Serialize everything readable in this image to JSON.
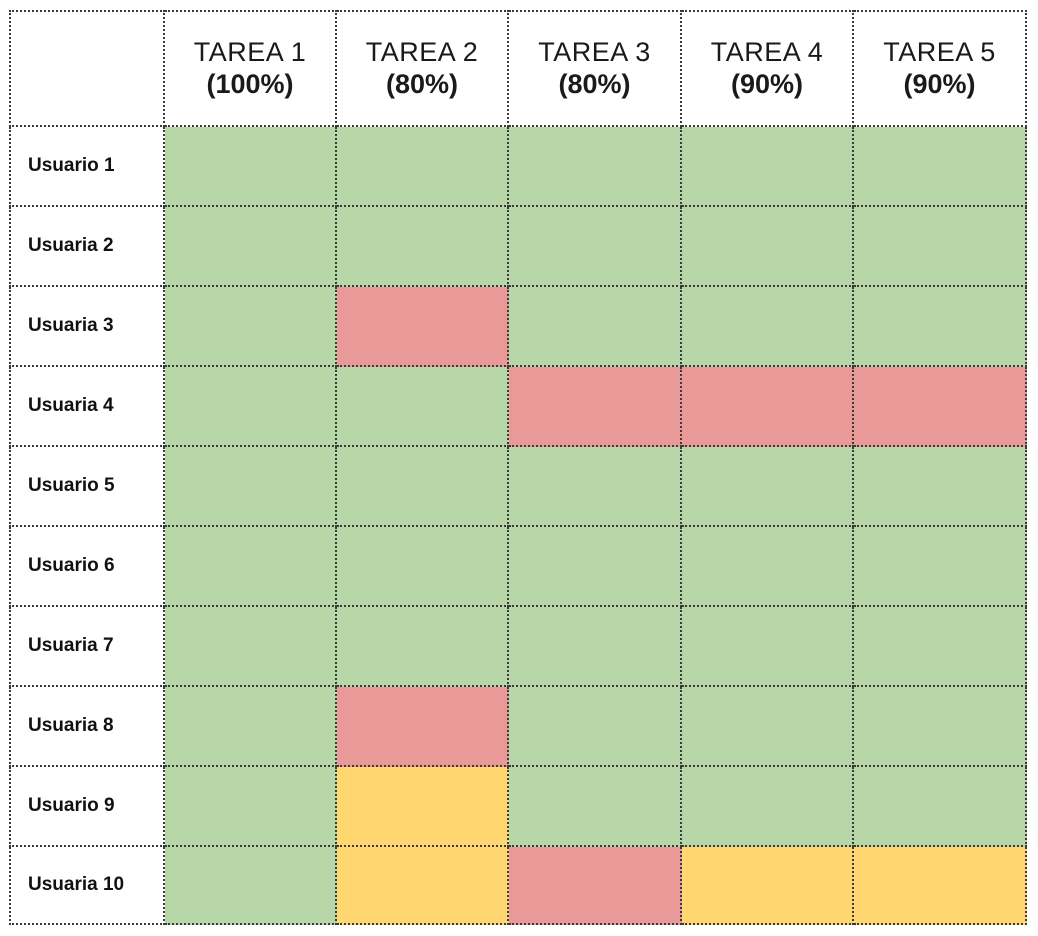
{
  "colors": {
    "success": "#b7d7a8",
    "failure": "#ea9999",
    "partial": "#ffd670",
    "header_bg": "#ffffff",
    "label_bg": "#ffffff"
  },
  "chart_data": {
    "type": "heatmap",
    "title": "",
    "columns": [
      {
        "name": "TAREA 1",
        "weight": "(100%)"
      },
      {
        "name": "TAREA 2",
        "weight": "(80%)"
      },
      {
        "name": "TAREA 3",
        "weight": "(80%)"
      },
      {
        "name": "TAREA 4",
        "weight": "(90%)"
      },
      {
        "name": "TAREA 5",
        "weight": "(90%)"
      }
    ],
    "rows": [
      "Usuario 1",
      "Usuaria 2",
      "Usuaria 3",
      "Usuaria 4",
      "Usuario 5",
      "Usuario 6",
      "Usuaria 7",
      "Usuaria 8",
      "Usuario 9",
      "Usuaria 10"
    ],
    "legend": {
      "success": "green",
      "failure": "red",
      "partial": "yellow"
    },
    "values": [
      [
        "success",
        "success",
        "success",
        "success",
        "success"
      ],
      [
        "success",
        "success",
        "success",
        "success",
        "success"
      ],
      [
        "success",
        "failure",
        "success",
        "success",
        "success"
      ],
      [
        "success",
        "success",
        "failure",
        "failure",
        "failure"
      ],
      [
        "success",
        "success",
        "success",
        "success",
        "success"
      ],
      [
        "success",
        "success",
        "success",
        "success",
        "success"
      ],
      [
        "success",
        "success",
        "success",
        "success",
        "success"
      ],
      [
        "success",
        "failure",
        "success",
        "success",
        "success"
      ],
      [
        "success",
        "partial",
        "success",
        "success",
        "success"
      ],
      [
        "success",
        "partial",
        "failure",
        "partial",
        "partial"
      ]
    ]
  }
}
